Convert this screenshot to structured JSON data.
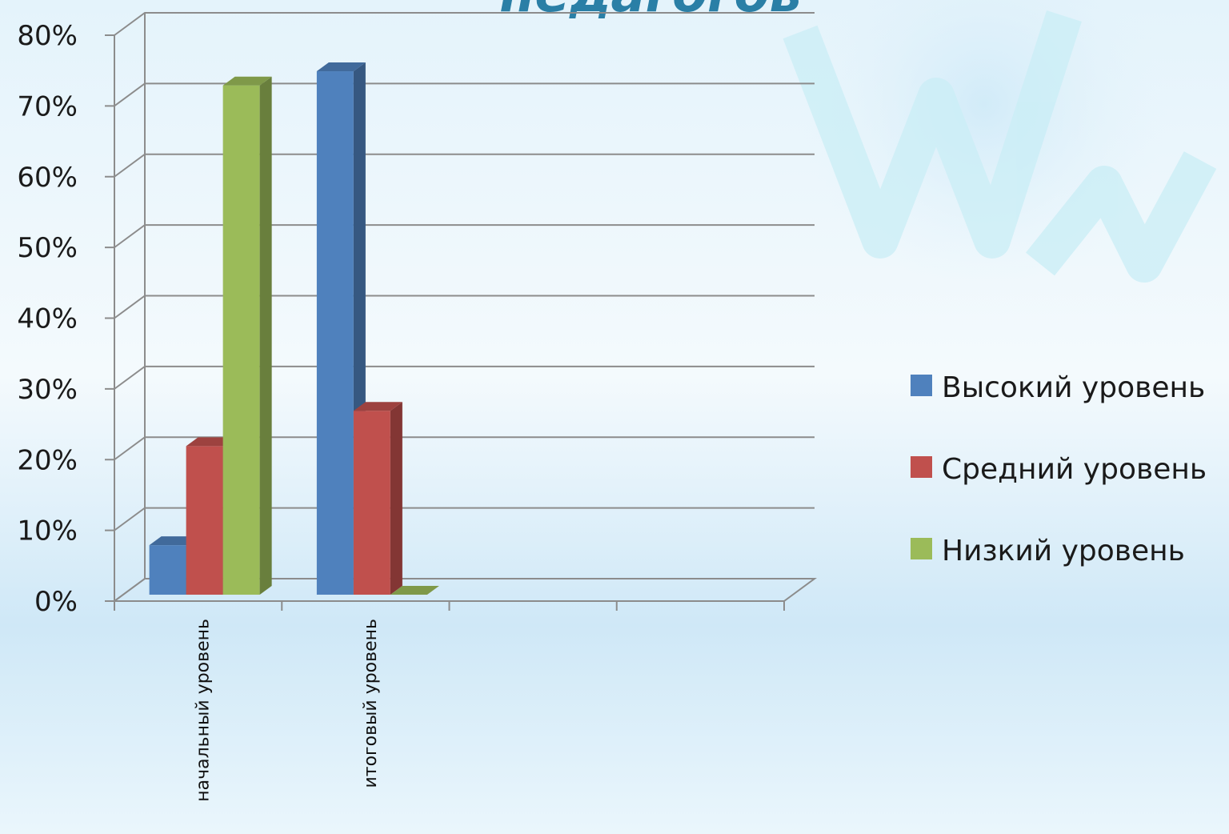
{
  "slide": {
    "title_fragment": "педагогов"
  },
  "chart_data": {
    "type": "bar",
    "categories": [
      "начальный уровень",
      "итоговый уровень"
    ],
    "series": [
      {
        "name": "Высокий уровень",
        "values": [
          7,
          74
        ],
        "color": "#4f81bd"
      },
      {
        "name": "Средний уровень",
        "values": [
          21,
          26
        ],
        "color": "#c0504d"
      },
      {
        "name": "Низкий уровень",
        "values": [
          72,
          0
        ],
        "color": "#9bbb59"
      }
    ],
    "yticks": [
      "0%",
      "10%",
      "20%",
      "30%",
      "40%",
      "50%",
      "60%",
      "70%",
      "80%"
    ],
    "ylim": [
      0,
      80
    ],
    "grid": true,
    "legend_position": "right"
  }
}
